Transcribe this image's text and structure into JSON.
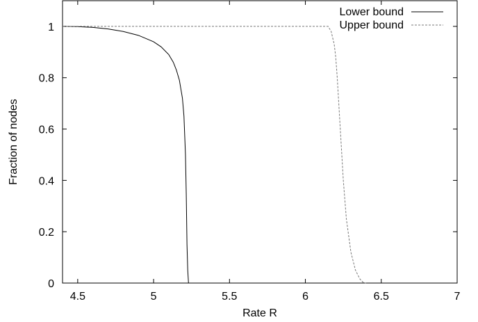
{
  "chart_data": {
    "type": "line",
    "title": "",
    "xlabel": "Rate R",
    "ylabel": "Fraction of nodes",
    "xlim": [
      4.4,
      7.0
    ],
    "ylim": [
      0,
      1.1
    ],
    "x_ticks": [
      "4.5",
      "5",
      "5.5",
      "6",
      "6.5",
      "7"
    ],
    "y_ticks": [
      "0",
      "0.2",
      "0.4",
      "0.6",
      "0.8",
      "1"
    ],
    "grid": false,
    "legend_position": "top-right",
    "series": [
      {
        "name": "Lower bound",
        "style": "solid",
        "color": "#000000",
        "x": [
          4.4,
          4.5,
          4.6,
          4.7,
          4.8,
          4.9,
          5.0,
          5.05,
          5.1,
          5.13,
          5.15,
          5.17,
          5.19,
          5.2,
          5.21,
          5.215,
          5.22,
          5.225,
          5.23
        ],
        "y": [
          1.0,
          0.999,
          0.996,
          0.99,
          0.98,
          0.965,
          0.94,
          0.92,
          0.89,
          0.86,
          0.83,
          0.79,
          0.72,
          0.65,
          0.5,
          0.35,
          0.15,
          0.05,
          0.0
        ]
      },
      {
        "name": "Upper bound",
        "style": "dashed",
        "color": "#777777",
        "x": [
          4.4,
          6.0,
          6.1,
          6.15,
          6.17,
          6.19,
          6.2,
          6.21,
          6.22,
          6.23,
          6.24,
          6.25,
          6.27,
          6.3,
          6.33,
          6.36,
          6.38,
          6.4
        ],
        "y": [
          1.0,
          1.0,
          1.0,
          1.0,
          0.98,
          0.93,
          0.88,
          0.8,
          0.7,
          0.6,
          0.5,
          0.4,
          0.25,
          0.12,
          0.05,
          0.015,
          0.003,
          0.0
        ]
      }
    ]
  }
}
